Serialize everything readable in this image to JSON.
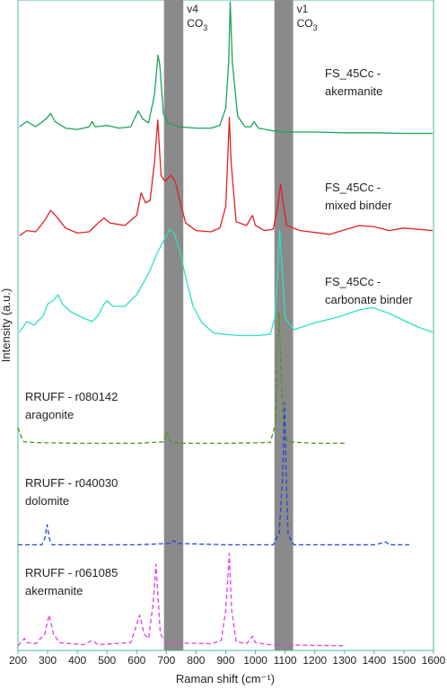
{
  "chart_data": {
    "type": "line",
    "xlabel": "Raman shift (cm⁻¹)",
    "ylabel": "Intensity (a.u.)",
    "xlim": [
      200,
      1600
    ],
    "x_ticks": [
      200,
      300,
      400,
      500,
      600,
      700,
      800,
      900,
      1000,
      1100,
      1200,
      1300,
      1400,
      1500,
      1600
    ],
    "bands": [
      {
        "label1": "v4",
        "label2": "CO",
        "sub": "3",
        "from": 692,
        "to": 757
      },
      {
        "label1": "v1",
        "label2": "CO",
        "sub": "3",
        "from": 1064,
        "to": 1127
      }
    ],
    "series": [
      {
        "label1": "FS_45Cc -",
        "label2": "akermanite",
        "color": "#1aa35a",
        "dash": false,
        "points": [
          [
            205,
            0.06
          ],
          [
            230,
            0.1
          ],
          [
            260,
            0.06
          ],
          [
            295,
            0.12
          ],
          [
            310,
            0.16
          ],
          [
            325,
            0.1
          ],
          [
            360,
            0.05
          ],
          [
            400,
            0.04
          ],
          [
            440,
            0.06
          ],
          [
            450,
            0.1
          ],
          [
            460,
            0.06
          ],
          [
            500,
            0.07
          ],
          [
            540,
            0.05
          ],
          [
            580,
            0.06
          ],
          [
            605,
            0.18
          ],
          [
            620,
            0.12
          ],
          [
            640,
            0.09
          ],
          [
            660,
            0.3
          ],
          [
            672,
            0.6
          ],
          [
            678,
            0.52
          ],
          [
            690,
            0.16
          ],
          [
            705,
            0.09
          ],
          [
            740,
            0.06
          ],
          [
            800,
            0.05
          ],
          [
            850,
            0.05
          ],
          [
            880,
            0.07
          ],
          [
            900,
            0.2
          ],
          [
            910,
            0.55
          ],
          [
            915,
            1.0
          ],
          [
            922,
            0.55
          ],
          [
            940,
            0.14
          ],
          [
            965,
            0.06
          ],
          [
            985,
            0.06
          ],
          [
            995,
            0.1
          ],
          [
            1010,
            0.05
          ],
          [
            1060,
            0.03
          ],
          [
            1100,
            0.02
          ],
          [
            1200,
            0.02
          ],
          [
            1300,
            0.015
          ],
          [
            1400,
            0.015
          ],
          [
            1500,
            0.01
          ],
          [
            1597,
            0.01
          ]
        ]
      },
      {
        "label1": "FS_45Cc -",
        "label2": "mixed binder",
        "color": "#e21f26",
        "dash": false,
        "points": [
          [
            205,
            0.02
          ],
          [
            230,
            0.06
          ],
          [
            260,
            0.05
          ],
          [
            290,
            0.14
          ],
          [
            310,
            0.22
          ],
          [
            330,
            0.17
          ],
          [
            360,
            0.08
          ],
          [
            400,
            0.04
          ],
          [
            440,
            0.05
          ],
          [
            470,
            0.12
          ],
          [
            490,
            0.16
          ],
          [
            510,
            0.12
          ],
          [
            560,
            0.1
          ],
          [
            600,
            0.18
          ],
          [
            615,
            0.36
          ],
          [
            630,
            0.28
          ],
          [
            645,
            0.3
          ],
          [
            660,
            0.6
          ],
          [
            671,
            0.94
          ],
          [
            682,
            0.5
          ],
          [
            695,
            0.45
          ],
          [
            715,
            0.5
          ],
          [
            730,
            0.45
          ],
          [
            745,
            0.3
          ],
          [
            765,
            0.12
          ],
          [
            800,
            0.06
          ],
          [
            850,
            0.05
          ],
          [
            880,
            0.08
          ],
          [
            900,
            0.25
          ],
          [
            908,
            0.7
          ],
          [
            912,
            0.96
          ],
          [
            918,
            0.6
          ],
          [
            935,
            0.13
          ],
          [
            970,
            0.1
          ],
          [
            990,
            0.18
          ],
          [
            1000,
            0.1
          ],
          [
            1030,
            0.06
          ],
          [
            1060,
            0.07
          ],
          [
            1075,
            0.25
          ],
          [
            1085,
            0.43
          ],
          [
            1092,
            0.3
          ],
          [
            1105,
            0.1
          ],
          [
            1150,
            0.06
          ],
          [
            1250,
            0.03
          ],
          [
            1350,
            0.1
          ],
          [
            1400,
            0.09
          ],
          [
            1450,
            0.06
          ],
          [
            1500,
            0.08
          ],
          [
            1597,
            0.06
          ]
        ]
      },
      {
        "label1": "FS_45Cc -",
        "label2": "carbonate binder",
        "color": "#2ee0c4",
        "dash": false,
        "points": [
          [
            205,
            0.08
          ],
          [
            230,
            0.17
          ],
          [
            255,
            0.14
          ],
          [
            285,
            0.22
          ],
          [
            300,
            0.32
          ],
          [
            320,
            0.35
          ],
          [
            335,
            0.4
          ],
          [
            350,
            0.32
          ],
          [
            380,
            0.25
          ],
          [
            420,
            0.2
          ],
          [
            450,
            0.17
          ],
          [
            470,
            0.22
          ],
          [
            490,
            0.32
          ],
          [
            500,
            0.35
          ],
          [
            520,
            0.3
          ],
          [
            560,
            0.3
          ],
          [
            600,
            0.4
          ],
          [
            640,
            0.58
          ],
          [
            670,
            0.76
          ],
          [
            695,
            0.88
          ],
          [
            712,
            0.96
          ],
          [
            725,
            0.93
          ],
          [
            745,
            0.78
          ],
          [
            765,
            0.55
          ],
          [
            790,
            0.3
          ],
          [
            820,
            0.16
          ],
          [
            860,
            0.07
          ],
          [
            900,
            0.06
          ],
          [
            950,
            0.05
          ],
          [
            1000,
            0.05
          ],
          [
            1050,
            0.06
          ],
          [
            1065,
            0.2
          ],
          [
            1075,
            0.6
          ],
          [
            1081,
            0.95
          ],
          [
            1088,
            0.7
          ],
          [
            1100,
            0.2
          ],
          [
            1130,
            0.1
          ],
          [
            1200,
            0.16
          ],
          [
            1280,
            0.21
          ],
          [
            1350,
            0.27
          ],
          [
            1395,
            0.29
          ],
          [
            1450,
            0.24
          ],
          [
            1500,
            0.18
          ],
          [
            1550,
            0.12
          ],
          [
            1597,
            0.08
          ]
        ]
      },
      {
        "label1": "RRUFF - r080142",
        "label2": "aragonite",
        "color": "#55941f",
        "dash": true,
        "points": [
          [
            200,
            0.12
          ],
          [
            210,
            0.06
          ],
          [
            220,
            0.02
          ],
          [
            260,
            0.015
          ],
          [
            400,
            0.01
          ],
          [
            600,
            0.01
          ],
          [
            690,
            0.02
          ],
          [
            702,
            0.09
          ],
          [
            712,
            0.03
          ],
          [
            740,
            0.01
          ],
          [
            900,
            0.01
          ],
          [
            1050,
            0.015
          ],
          [
            1068,
            0.15
          ],
          [
            1074,
            0.6
          ],
          [
            1080,
            0.92
          ],
          [
            1086,
            0.52
          ],
          [
            1094,
            0.1
          ],
          [
            1110,
            0.02
          ],
          [
            1200,
            0.01
          ],
          [
            1300,
            0.01
          ]
        ]
      },
      {
        "label1": "RRUFF - r040030",
        "label2": "dolomite",
        "color": "#2244dd",
        "dash": true,
        "points": [
          [
            200,
            0.01
          ],
          [
            280,
            0.01
          ],
          [
            290,
            0.05
          ],
          [
            298,
            0.15
          ],
          [
            306,
            0.05
          ],
          [
            315,
            0.01
          ],
          [
            600,
            0.01
          ],
          [
            715,
            0.02
          ],
          [
            725,
            0.04
          ],
          [
            735,
            0.02
          ],
          [
            900,
            0.01
          ],
          [
            1060,
            0.01
          ],
          [
            1080,
            0.09
          ],
          [
            1092,
            0.5
          ],
          [
            1098,
            1.0
          ],
          [
            1103,
            0.55
          ],
          [
            1110,
            0.08
          ],
          [
            1130,
            0.01
          ],
          [
            1400,
            0.01
          ],
          [
            1440,
            0.03
          ],
          [
            1450,
            0.01
          ],
          [
            1518,
            0.01
          ]
        ]
      },
      {
        "label1": "RRUFF - r061085",
        "label2": "akermanite",
        "color": "#e23ee8",
        "dash": true,
        "points": [
          [
            200,
            0.01
          ],
          [
            222,
            0.08
          ],
          [
            230,
            0.04
          ],
          [
            260,
            0.03
          ],
          [
            290,
            0.12
          ],
          [
            305,
            0.3
          ],
          [
            320,
            0.12
          ],
          [
            340,
            0.04
          ],
          [
            420,
            0.02
          ],
          [
            450,
            0.06
          ],
          [
            470,
            0.02
          ],
          [
            520,
            0.03
          ],
          [
            580,
            0.04
          ],
          [
            610,
            0.3
          ],
          [
            625,
            0.12
          ],
          [
            640,
            0.08
          ],
          [
            655,
            0.4
          ],
          [
            665,
            0.78
          ],
          [
            670,
            0.55
          ],
          [
            680,
            0.12
          ],
          [
            700,
            0.04
          ],
          [
            850,
            0.03
          ],
          [
            885,
            0.06
          ],
          [
            900,
            0.35
          ],
          [
            912,
            0.88
          ],
          [
            920,
            0.35
          ],
          [
            935,
            0.05
          ],
          [
            970,
            0.03
          ],
          [
            990,
            0.1
          ],
          [
            1000,
            0.04
          ],
          [
            1050,
            0.02
          ],
          [
            1300,
            0.01
          ]
        ]
      }
    ]
  }
}
